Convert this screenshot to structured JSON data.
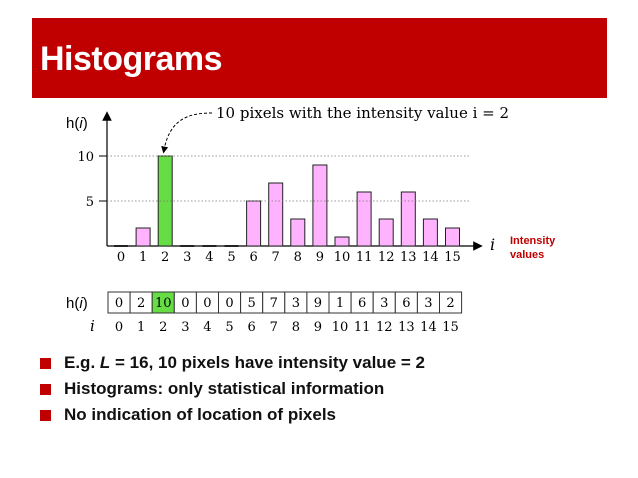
{
  "slide": {
    "title": "Histograms",
    "accent_color": "#c00000",
    "bar_color": "#ffb3ff",
    "highlight_color": "#66dd44"
  },
  "chart_data": {
    "type": "bar",
    "ylabel": "h(i)",
    "xlabel": "i",
    "x_side_label": [
      "Intensity",
      "values"
    ],
    "categories": [
      "0",
      "1",
      "2",
      "3",
      "4",
      "5",
      "6",
      "7",
      "8",
      "9",
      "10",
      "11",
      "12",
      "13",
      "14",
      "15"
    ],
    "values": [
      0,
      2,
      10,
      0,
      0,
      0,
      5,
      7,
      3,
      9,
      1,
      6,
      3,
      6,
      3,
      2
    ],
    "highlight_index": 2,
    "yticks": [
      "5",
      "10"
    ],
    "ylim": [
      0,
      12
    ],
    "annotation": "10 pixels with the intensity value i = 2"
  },
  "table": {
    "row1_label": "h(i)",
    "row2_label": "i",
    "values": [
      "0",
      "2",
      "10",
      "0",
      "0",
      "0",
      "5",
      "7",
      "3",
      "9",
      "1",
      "6",
      "3",
      "6",
      "3",
      "2"
    ],
    "indices": [
      "0",
      "1",
      "2",
      "3",
      "4",
      "5",
      "6",
      "7",
      "8",
      "9",
      "10",
      "11",
      "12",
      "13",
      "14",
      "15"
    ]
  },
  "bullets": {
    "b1_prefix": "E.g. ",
    "b1_var": "L",
    "b1_suffix": " = 16, 10 pixels have intensity value = 2",
    "b2": "Histograms: only statistical information",
    "b3": "No indication of location of pixels"
  }
}
